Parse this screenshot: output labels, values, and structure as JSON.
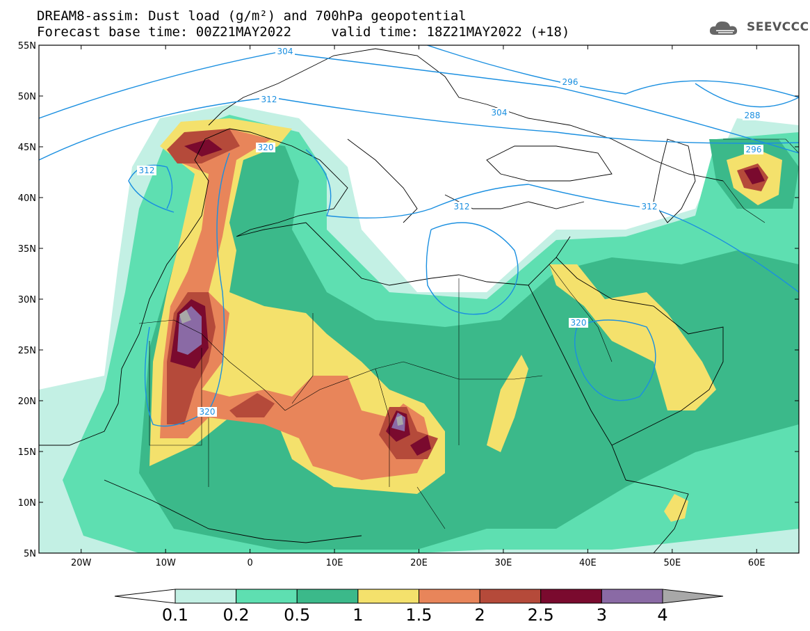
{
  "title": {
    "line1": "DREAM8-assim: Dust load (g/m²) and 700hPa geopotential",
    "line2": "Forecast base time: 00Z21MAY2022     valid time: 18Z21MAY2022 (+18)"
  },
  "logo": {
    "text": "SEEVCCC",
    "icon": "cloud-icon"
  },
  "map": {
    "lon_range": [
      -25,
      65
    ],
    "lat_range": [
      5,
      55
    ],
    "lat_labels": [
      "55N",
      "50N",
      "45N",
      "40N",
      "35N",
      "30N",
      "25N",
      "20N",
      "15N",
      "10N",
      "5N"
    ],
    "lon_labels": [
      "20W",
      "10W",
      "0",
      "10E",
      "20E",
      "30E",
      "40E",
      "50E",
      "60E"
    ]
  },
  "isohypses": [
    "304",
    "296",
    "288",
    "312",
    "304",
    "320",
    "312",
    "312",
    "296",
    "320",
    "320",
    "312"
  ],
  "colorbar": {
    "labels": [
      "0.1",
      "0.2",
      "0.5",
      "1",
      "1.5",
      "2",
      "2.5",
      "3",
      "4"
    ],
    "colors": [
      "#c3f0e4",
      "#5edfb1",
      "#3bb98a",
      "#f4e16c",
      "#e8855a",
      "#b54a3a",
      "#7a0a2e",
      "#8a6aa5",
      "#a8a8a8"
    ]
  }
}
